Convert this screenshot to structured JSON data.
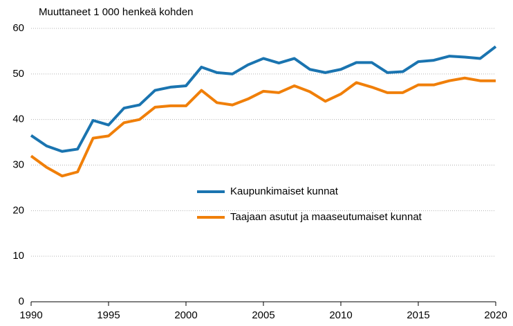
{
  "chart_data": {
    "type": "line",
    "title": "Muuttaneet 1 000 henkeä kohden",
    "x": [
      1990,
      1991,
      1992,
      1993,
      1994,
      1995,
      1996,
      1997,
      1998,
      1999,
      2000,
      2001,
      2002,
      2003,
      2004,
      2005,
      2006,
      2007,
      2008,
      2009,
      2010,
      2011,
      2012,
      2013,
      2014,
      2015,
      2016,
      2017,
      2018,
      2019,
      2020
    ],
    "series": [
      {
        "name": "Kaupunkimaiset kunnat",
        "color": "#1a74b0",
        "values": [
          36.5,
          34.2,
          33.0,
          33.5,
          39.8,
          38.8,
          42.5,
          43.2,
          46.4,
          47.1,
          47.4,
          51.5,
          50.3,
          50.0,
          52.0,
          53.4,
          52.4,
          53.4,
          51.0,
          50.3,
          51.0,
          52.5,
          52.5,
          50.3,
          50.5,
          52.7,
          53.0,
          53.9,
          53.7,
          53.4,
          56.0
        ]
      },
      {
        "name": "Taajaan asutut ja maaseutumaiset kunnat",
        "color": "#f07f09",
        "values": [
          32.0,
          29.5,
          27.6,
          28.5,
          35.9,
          36.4,
          39.3,
          40.0,
          42.7,
          43.0,
          43.0,
          46.4,
          43.7,
          43.2,
          44.5,
          46.2,
          45.9,
          47.4,
          46.1,
          44.0,
          45.6,
          48.1,
          47.1,
          45.9,
          45.9,
          47.6,
          47.6,
          48.5,
          49.1,
          48.5,
          48.5
        ]
      }
    ],
    "xlim": [
      1990,
      2020
    ],
    "xticks": [
      1990,
      1995,
      2000,
      2005,
      2010,
      2015,
      2020
    ],
    "ylim": [
      0,
      60
    ],
    "yticks": [
      0,
      10,
      20,
      30,
      40,
      50,
      60
    ],
    "grid": true
  }
}
